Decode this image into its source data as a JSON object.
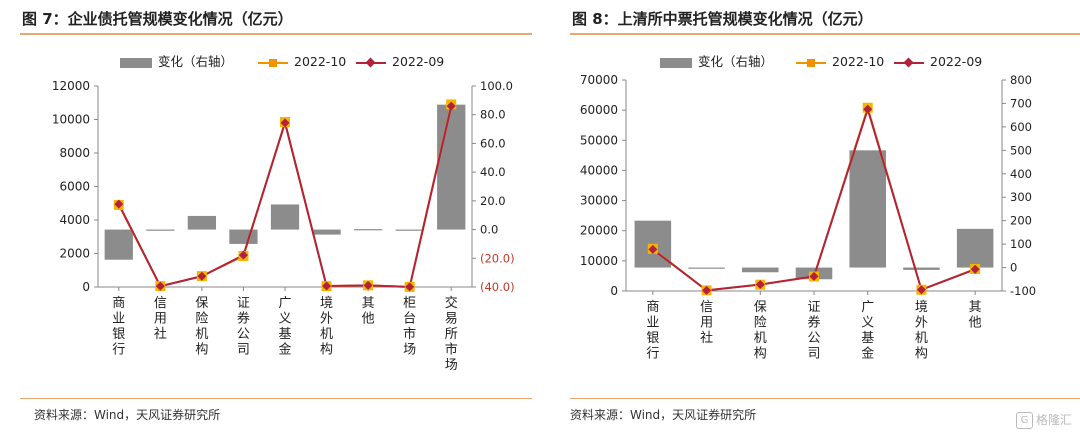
{
  "charts": [
    {
      "title": "图 7：企业债托管规模变化情况（亿元）",
      "legend": {
        "bar": "变化（右轴）",
        "line1": "2022-10",
        "line2": "2022-09"
      },
      "source": "资料来源：Wind，天风证券研究所"
    },
    {
      "title": "图 8：上清所中票托管规模变化情况（亿元）",
      "legend": {
        "bar": "变化（右轴）",
        "line1": "2022-10",
        "line2": "2022-09"
      },
      "source": "资料来源：Wind，天风证券研究所"
    }
  ],
  "watermark": "格隆汇",
  "colors": {
    "bar": "#8c8c8c",
    "line1": "#f39200",
    "line1_marker": "#f7b500",
    "line2": "#b0233a",
    "negative_tick": "#c0392b",
    "rule": "#e9a772"
  },
  "chart_data": [
    {
      "type": "bar+line",
      "categories": [
        "商业银行",
        "信用社",
        "保险机构",
        "证券公司",
        "广义基金",
        "境外机构",
        "其他",
        "柜台市场",
        "交易所市场"
      ],
      "y_left": {
        "ylim": [
          0,
          12000
        ],
        "ticks": [
          0,
          2000,
          4000,
          6000,
          8000,
          10000,
          12000
        ]
      },
      "y_right": {
        "ylim": [
          -40,
          100
        ],
        "ticks": [
          "(40.0)",
          "(20.0)",
          "0.0",
          "20.0",
          "40.0",
          "60.0",
          "80.0",
          "100.0"
        ],
        "tick_values": [
          -40,
          -20,
          0,
          20,
          40,
          60,
          80,
          100
        ]
      },
      "series": [
        {
          "name": "变化（右轴）",
          "type": "bar",
          "axis": "right",
          "values": [
            -21,
            -0.6,
            9.5,
            -10,
            17.5,
            -3.5,
            0.3,
            0,
            87
          ]
        },
        {
          "name": "2022-10",
          "type": "line",
          "axis": "left",
          "values": [
            4900,
            50,
            650,
            1850,
            9850,
            50,
            100,
            5,
            10900
          ]
        },
        {
          "name": "2022-09",
          "type": "line",
          "axis": "left",
          "values": [
            4950,
            50,
            640,
            1900,
            9800,
            60,
            95,
            5,
            10800
          ]
        }
      ],
      "grid": false,
      "legend_position": "top-center"
    },
    {
      "type": "bar+line",
      "categories": [
        "商业银行",
        "信用社",
        "保险机构",
        "证券公司",
        "广义基金",
        "境外机构",
        "其他"
      ],
      "y_left": {
        "ylim": [
          0,
          70000
        ],
        "ticks": [
          0,
          10000,
          20000,
          30000,
          40000,
          50000,
          60000,
          70000
        ]
      },
      "y_right": {
        "ylim": [
          -100,
          800
        ],
        "ticks": [
          "-100",
          "0",
          "100",
          "200",
          "300",
          "400",
          "500",
          "600",
          "700",
          "800"
        ],
        "tick_values": [
          -100,
          0,
          100,
          200,
          300,
          400,
          500,
          600,
          700,
          800
        ]
      },
      "series": [
        {
          "name": "变化（右轴）",
          "type": "bar",
          "axis": "right",
          "values": [
            200,
            -3,
            -20,
            -50,
            500,
            -10,
            165
          ]
        },
        {
          "name": "2022-10",
          "type": "line",
          "axis": "left",
          "values": [
            14000,
            200,
            2100,
            4800,
            60800,
            400,
            7300
          ]
        },
        {
          "name": "2022-09",
          "type": "line",
          "axis": "left",
          "values": [
            13800,
            200,
            2150,
            4850,
            60300,
            420,
            7200
          ]
        }
      ],
      "grid": false,
      "legend_position": "top-center"
    }
  ]
}
